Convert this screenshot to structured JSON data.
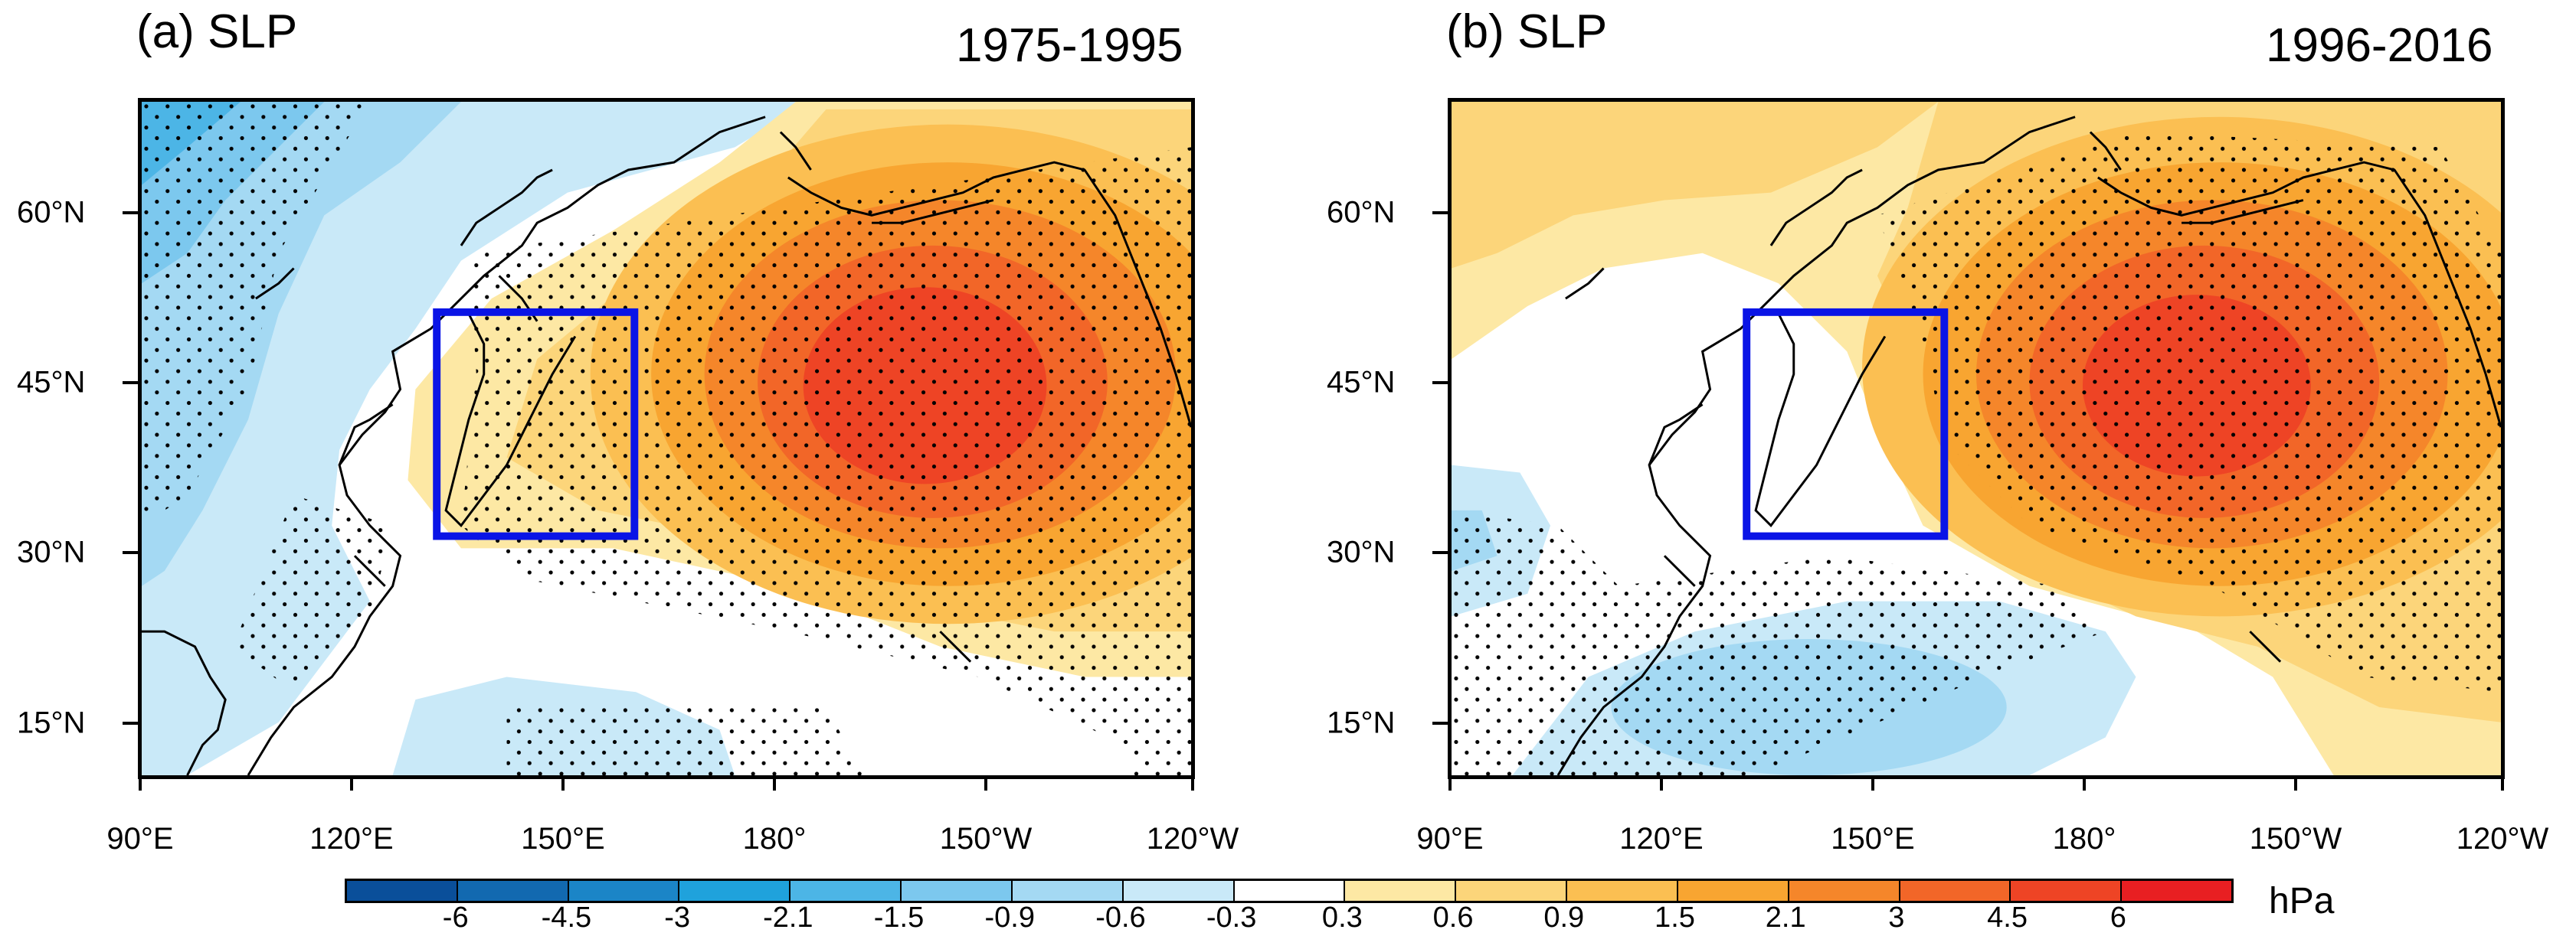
{
  "panels": [
    {
      "title": "(a) SLP",
      "period": "1975-1995",
      "boxed_region": "135°E–165°E, 30°N–50°N"
    },
    {
      "title": "(b) SLP",
      "period": "1996-2016",
      "boxed_region": "135°E–165°E, 30°N–50°N"
    }
  ],
  "axes": {
    "lon_labels": [
      "90°E",
      "120°E",
      "150°E",
      "180°",
      "150°W",
      "120°W"
    ],
    "lat_labels": [
      "60°N",
      "45°N",
      "30°N",
      "15°N"
    ]
  },
  "colorbar": {
    "unit": "hPa",
    "levels": [
      "-6",
      "-4.5",
      "-3",
      "-2.1",
      "-1.5",
      "-0.9",
      "-0.6",
      "-0.3",
      "0.3",
      "0.6",
      "0.9",
      "1.5",
      "2.1",
      "3",
      "4.5",
      "6"
    ],
    "colors": [
      "#0a4f9a",
      "#1269b0",
      "#1b85c7",
      "#1fa2dc",
      "#4cb5e6",
      "#7cc8ee",
      "#a4d9f3",
      "#c9e9f8",
      "#ffffff",
      "#fde8a4",
      "#fcd57a",
      "#fbbf52",
      "#f8a531",
      "#f5862a",
      "#f26628",
      "#ee4425",
      "#e81f22"
    ]
  },
  "colors": {
    "box": "#0a14e6",
    "coast": "#000000",
    "stipple": "#000000"
  }
}
